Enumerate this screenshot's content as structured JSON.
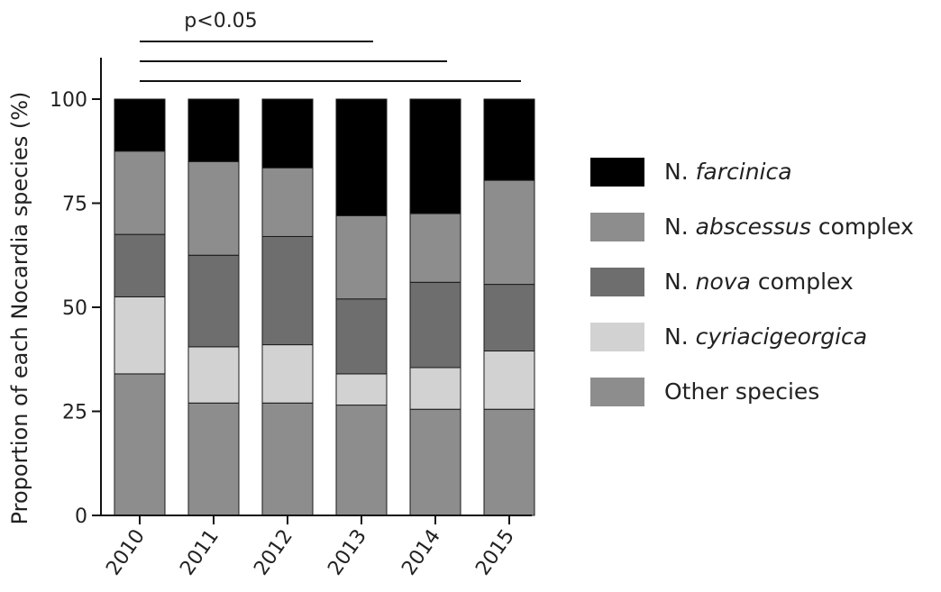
{
  "chart_data": {
    "type": "bar",
    "stacked": true,
    "categories": [
      "2010",
      "2011",
      "2012",
      "2013",
      "2014",
      "2015"
    ],
    "ylabel": "Proportion of each Nocardia species (%)",
    "ylim": [
      0,
      100
    ],
    "yticks": [
      0,
      25,
      50,
      75,
      100
    ],
    "series": [
      {
        "name": "Other species",
        "values": [
          34,
          27,
          27,
          26.5,
          25.5,
          25.5
        ],
        "color": "#8d8d8d"
      },
      {
        "name": "N. cyriacigeorgica",
        "values": [
          18.5,
          13.5,
          14,
          7.5,
          10,
          14
        ],
        "color": "#d2d2d2"
      },
      {
        "name": "N. nova complex",
        "values": [
          15,
          22,
          26,
          18,
          20.5,
          16
        ],
        "color": "#6e6e6e"
      },
      {
        "name": "N. abscessus complex",
        "values": [
          20,
          22.5,
          16.5,
          20,
          16.5,
          25
        ],
        "color": "#8d8d8d"
      },
      {
        "name": "N. farcinica",
        "values": [
          12.5,
          15,
          16.5,
          28,
          27.5,
          19.5
        ],
        "color": "#000000"
      }
    ],
    "significance": {
      "label": "p<0.05",
      "comparisons": [
        [
          "2010",
          "2013"
        ],
        [
          "2010",
          "2014"
        ],
        [
          "2010",
          "2015"
        ]
      ]
    }
  },
  "legend": {
    "items": [
      {
        "prefix": "N. ",
        "italic": "farcinica",
        "suffix": "",
        "color": "#000000"
      },
      {
        "prefix": "N. ",
        "italic": "abscessus",
        "suffix": " complex",
        "color": "#8d8d8d"
      },
      {
        "prefix": "N. ",
        "italic": "nova",
        "suffix": " complex",
        "color": "#6e6e6e"
      },
      {
        "prefix": "N. ",
        "italic": "cyriacigeorgica",
        "suffix": "",
        "color": "#d2d2d2"
      },
      {
        "prefix": "",
        "italic": "",
        "suffix": "Other species",
        "color": "#8d8d8d"
      }
    ]
  }
}
